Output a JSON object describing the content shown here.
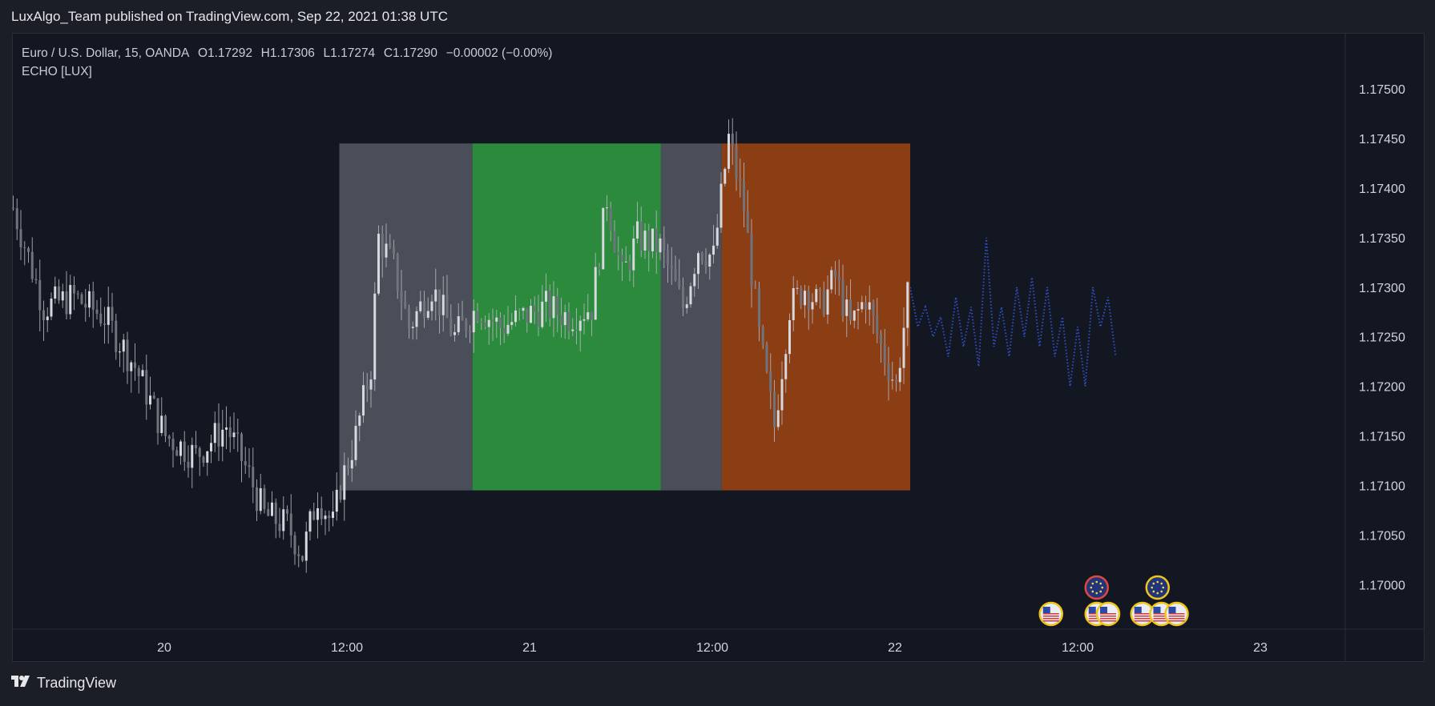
{
  "header": {
    "published": "LuxAlgo_Team published on TradingView.com, Sep 22, 2021 01:38 UTC"
  },
  "legend": {
    "symbol": "Euro / U.S. Dollar, 15, OANDA",
    "open": "O1.17292",
    "high": "H1.17306",
    "low": "L1.17274",
    "close": "C1.17290",
    "change": "−0.00002 (−0.00%)",
    "indicator": "ECHO [LUX]"
  },
  "footer": {
    "brand": "TradingView",
    "logo_icon": "tradingview-logo-icon"
  },
  "colors": {
    "background": "#131722",
    "candle": "#b2b5be",
    "zone_gray": "#4a4e58",
    "zone_green": "#2c8a3d",
    "zone_orange": "#8b3d14",
    "forecast": "#2f4fc4",
    "event_ring": "#f0c419",
    "event_ring_eu": "#e0483f"
  },
  "chart_data": {
    "type": "candlestick",
    "title": "Euro / U.S. Dollar, 15, OANDA",
    "x_ticks": [
      "20",
      "12:00",
      "21",
      "12:00",
      "22",
      "12:00",
      "23"
    ],
    "x_tick_index": [
      40,
      88,
      136,
      184,
      232,
      280,
      328
    ],
    "y_ticks": [
      "1.17500",
      "1.17450",
      "1.17400",
      "1.17350",
      "1.17300",
      "1.17250",
      "1.17200",
      "1.17150",
      "1.17100",
      "1.17050",
      "1.17000"
    ],
    "ylim": [
      1.16955,
      1.17555
    ],
    "close_path": [
      [
        0,
        1.1738
      ],
      [
        8,
        1.1728
      ],
      [
        16,
        1.1729
      ],
      [
        24,
        1.1727
      ],
      [
        32,
        1.1722
      ],
      [
        40,
        1.1715
      ],
      [
        48,
        1.1713
      ],
      [
        56,
        1.1716
      ],
      [
        62,
        1.1711
      ],
      [
        66,
        1.1707
      ],
      [
        72,
        1.1706
      ],
      [
        76,
        1.1703
      ],
      [
        80,
        1.1709
      ],
      [
        84,
        1.1706
      ],
      [
        86,
        1.171
      ],
      [
        90,
        1.1715
      ],
      [
        94,
        1.1722
      ],
      [
        96,
        1.1735
      ],
      [
        100,
        1.1732
      ],
      [
        104,
        1.1726
      ],
      [
        110,
        1.173
      ],
      [
        116,
        1.1725
      ],
      [
        122,
        1.1728
      ],
      [
        128,
        1.1726
      ],
      [
        134,
        1.1727
      ],
      [
        140,
        1.1728
      ],
      [
        146,
        1.1727
      ],
      [
        152,
        1.1728
      ],
      [
        156,
        1.1739
      ],
      [
        160,
        1.1731
      ],
      [
        164,
        1.1735
      ],
      [
        170,
        1.1734
      ],
      [
        176,
        1.1728
      ],
      [
        180,
        1.1734
      ],
      [
        184,
        1.1733
      ],
      [
        188,
        1.1745
      ],
      [
        192,
        1.1738
      ],
      [
        196,
        1.1725
      ],
      [
        200,
        1.1716
      ],
      [
        204,
        1.1728
      ],
      [
        208,
        1.173
      ],
      [
        212,
        1.1728
      ],
      [
        216,
        1.1731
      ],
      [
        220,
        1.1726
      ],
      [
        224,
        1.1729
      ],
      [
        228,
        1.1724
      ],
      [
        232,
        1.172
      ],
      [
        235,
        1.1729
      ]
    ],
    "zones": [
      {
        "type": "gray",
        "from": 86,
        "to": 121,
        "top": 1.17445,
        "bottom": 1.17095
      },
      {
        "type": "green",
        "from": 121,
        "to": 170.5,
        "top": 1.17445,
        "bottom": 1.17095
      },
      {
        "type": "gray",
        "from": 170.5,
        "to": 186.5,
        "top": 1.17445,
        "bottom": 1.17095
      },
      {
        "type": "orange",
        "from": 186.5,
        "to": 236,
        "top": 1.17445,
        "bottom": 1.17095
      }
    ],
    "forecast": [
      [
        236,
        1.173
      ],
      [
        238,
        1.1726
      ],
      [
        240,
        1.1728
      ],
      [
        242,
        1.1725
      ],
      [
        244,
        1.1727
      ],
      [
        246,
        1.1723
      ],
      [
        248,
        1.1729
      ],
      [
        250,
        1.1724
      ],
      [
        252,
        1.1728
      ],
      [
        254,
        1.1722
      ],
      [
        256,
        1.1735
      ],
      [
        258,
        1.1724
      ],
      [
        260,
        1.1728
      ],
      [
        262,
        1.1723
      ],
      [
        264,
        1.173
      ],
      [
        266,
        1.1725
      ],
      [
        268,
        1.1731
      ],
      [
        270,
        1.1724
      ],
      [
        272,
        1.173
      ],
      [
        274,
        1.1723
      ],
      [
        276,
        1.1727
      ],
      [
        278,
        1.172
      ],
      [
        280,
        1.1726
      ],
      [
        282,
        1.172
      ],
      [
        284,
        1.173
      ],
      [
        286,
        1.1726
      ],
      [
        288,
        1.1729
      ],
      [
        290,
        1.1723
      ]
    ],
    "events": [
      {
        "index": 273,
        "row": 1,
        "type": "us-flag-icon"
      },
      {
        "index": 285,
        "row": 1,
        "type": "us-flag-icon"
      },
      {
        "index": 288,
        "row": 1,
        "type": "us-flag-icon"
      },
      {
        "index": 285,
        "row": 2,
        "type": "eu-flag-icon"
      },
      {
        "index": 297,
        "row": 1,
        "type": "us-flag-icon"
      },
      {
        "index": 302,
        "row": 1,
        "type": "us-flag-icon"
      },
      {
        "index": 306,
        "row": 1,
        "type": "us-flag-icon"
      },
      {
        "index": 301,
        "row": 2,
        "type": "eu-flag-icon"
      }
    ]
  }
}
